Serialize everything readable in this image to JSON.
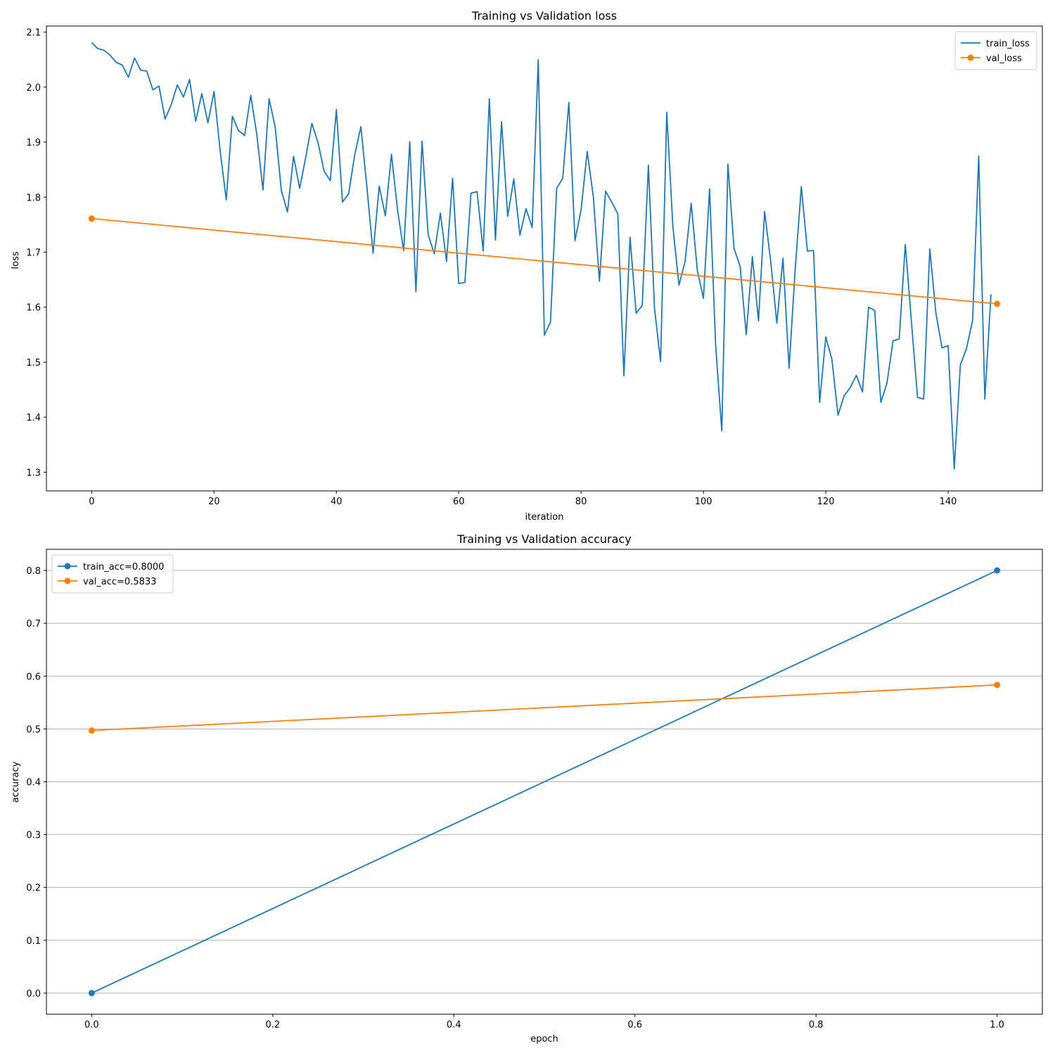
{
  "chart_data": [
    {
      "type": "line",
      "title": "Training vs Validation loss",
      "xlabel": "iteration",
      "ylabel": "loss",
      "xlim": [
        -7.4,
        155.4
      ],
      "ylim": [
        1.266,
        2.111
      ],
      "xticks": [
        0,
        20,
        40,
        60,
        80,
        100,
        120,
        140
      ],
      "yticks": [
        1.3,
        1.4,
        1.5,
        1.6,
        1.7,
        1.8,
        1.9,
        2.0,
        2.1
      ],
      "grid": false,
      "legend_position": "upper right",
      "series": [
        {
          "name": "train_loss",
          "color": "#1f77b4",
          "marker": false,
          "x": [
            0,
            1,
            2,
            3,
            4,
            5,
            6,
            7,
            8,
            9,
            10,
            11,
            12,
            13,
            14,
            15,
            16,
            17,
            18,
            19,
            20,
            21,
            22,
            23,
            24,
            25,
            26,
            27,
            28,
            29,
            30,
            31,
            32,
            33,
            34,
            35,
            36,
            37,
            38,
            39,
            40,
            41,
            42,
            43,
            44,
            45,
            46,
            47,
            48,
            49,
            50,
            51,
            52,
            53,
            54,
            55,
            56,
            57,
            58,
            59,
            60,
            61,
            62,
            63,
            64,
            65,
            66,
            67,
            68,
            69,
            70,
            71,
            72,
            73,
            74,
            75,
            76,
            77,
            78,
            79,
            80,
            81,
            82,
            83,
            84,
            85,
            86,
            87,
            88,
            89,
            90,
            91,
            92,
            93,
            94,
            95,
            96,
            97,
            98,
            99,
            100,
            101,
            102,
            103,
            104,
            105,
            106,
            107,
            108,
            109,
            110,
            111,
            112,
            113,
            114,
            115,
            116,
            117,
            118,
            119,
            120,
            121,
            122,
            123,
            124,
            125,
            126,
            127,
            128,
            129,
            130,
            131,
            132,
            133,
            134,
            135,
            136,
            137,
            138,
            139,
            140,
            141,
            142,
            143,
            144,
            145,
            146,
            147
          ],
          "values": [
            2.081,
            2.07,
            2.067,
            2.058,
            2.045,
            2.04,
            2.018,
            2.053,
            2.031,
            2.029,
            1.995,
            2.002,
            1.942,
            1.968,
            2.004,
            1.982,
            2.014,
            1.938,
            1.988,
            1.935,
            1.992,
            1.884,
            1.795,
            1.947,
            1.921,
            1.912,
            1.985,
            1.913,
            1.813,
            1.979,
            1.927,
            1.812,
            1.773,
            1.874,
            1.816,
            1.873,
            1.934,
            1.899,
            1.847,
            1.83,
            1.959,
            1.791,
            1.806,
            1.877,
            1.928,
            1.817,
            1.698,
            1.82,
            1.766,
            1.878,
            1.776,
            1.703,
            1.901,
            1.628,
            1.902,
            1.732,
            1.697,
            1.771,
            1.683,
            1.834,
            1.643,
            1.645,
            1.807,
            1.81,
            1.702,
            1.979,
            1.722,
            1.937,
            1.765,
            1.833,
            1.731,
            1.779,
            1.745,
            2.05,
            1.549,
            1.573,
            1.816,
            1.834,
            1.972,
            1.721,
            1.777,
            1.883,
            1.801,
            1.647,
            1.811,
            1.791,
            1.77,
            1.475,
            1.727,
            1.589,
            1.603,
            1.858,
            1.598,
            1.501,
            1.954,
            1.747,
            1.64,
            1.683,
            1.789,
            1.667,
            1.616,
            1.815,
            1.53,
            1.375,
            1.86,
            1.707,
            1.674,
            1.55,
            1.692,
            1.575,
            1.774,
            1.683,
            1.571,
            1.689,
            1.489,
            1.669,
            1.819,
            1.702,
            1.703,
            1.427,
            1.546,
            1.505,
            1.404,
            1.439,
            1.454,
            1.476,
            1.446,
            1.6,
            1.594,
            1.427,
            1.462,
            1.539,
            1.542,
            1.714,
            1.573,
            1.436,
            1.433,
            1.706,
            1.589,
            1.526,
            1.53,
            1.306,
            1.495,
            1.525,
            1.576,
            1.875,
            1.433,
            1.623
          ]
        },
        {
          "name": "val_loss",
          "color": "#ff7f0e",
          "marker": true,
          "x": [
            0,
            148
          ],
          "values": [
            1.761,
            1.606
          ]
        }
      ]
    },
    {
      "type": "line",
      "title": "Training vs Validation accuracy",
      "xlabel": "epoch",
      "ylabel": "accuracy",
      "xlim": [
        -0.05,
        1.05
      ],
      "ylim": [
        -0.04,
        0.84
      ],
      "xticks": [
        0.0,
        0.2,
        0.4,
        0.6,
        0.8,
        1.0
      ],
      "yticks": [
        0.0,
        0.1,
        0.2,
        0.3,
        0.4,
        0.5,
        0.6,
        0.7,
        0.8
      ],
      "grid": true,
      "grid_axis": "y",
      "legend_position": "upper left",
      "series": [
        {
          "name": "train_acc=0.8000",
          "color": "#1f77b4",
          "marker": true,
          "x": [
            0,
            1
          ],
          "values": [
            0.0,
            0.8
          ]
        },
        {
          "name": "val_acc=0.5833",
          "color": "#ff7f0e",
          "marker": true,
          "x": [
            0,
            1
          ],
          "values": [
            0.497,
            0.5833
          ]
        }
      ]
    }
  ]
}
